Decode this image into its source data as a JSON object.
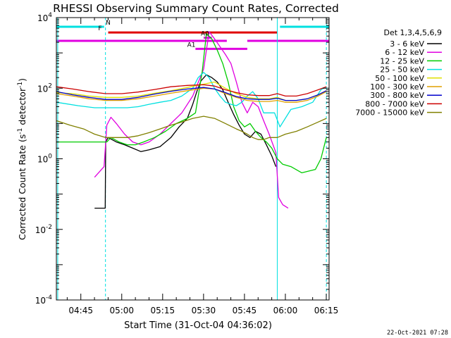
{
  "chart_data": {
    "type": "line",
    "title": "RHESSI Observing Summary Count Rates, Corrected",
    "xlabel": "Start Time (31-Oct-04 04:36:02)",
    "ylabel_main": "Corrected Count Rate (s",
    "ylabel_sup1": "-1",
    "ylabel_mid": " detector",
    "ylabel_sup2": "-1",
    "ylabel_end": ")",
    "x_unit": "minutes after 04:36:02",
    "xlim": [
      0,
      100
    ],
    "ylim": [
      0.0001,
      10000
    ],
    "yscale": "log",
    "x_ticks": [
      {
        "t": 8.97,
        "label": "04:45"
      },
      {
        "t": 23.97,
        "label": "05:00"
      },
      {
        "t": 38.97,
        "label": "05:15"
      },
      {
        "t": 53.97,
        "label": "05:30"
      },
      {
        "t": 68.97,
        "label": "05:45"
      },
      {
        "t": 83.97,
        "label": "06:00"
      },
      {
        "t": 98.97,
        "label": "06:15"
      }
    ],
    "y_ticks": [
      {
        "v": 10000,
        "base": "10",
        "exp": "4"
      },
      {
        "v": 100,
        "base": "10",
        "exp": "2"
      },
      {
        "v": 1,
        "base": "10",
        "exp": "0"
      },
      {
        "v": 0.01,
        "base": "10",
        "exp": "-2"
      },
      {
        "v": 0.0001,
        "base": "10",
        "exp": "-4"
      }
    ],
    "legend_title": "Det 1,3,4,5,6,9",
    "legend_placement": "right",
    "date_stamp": "22-Oct-2021 07:28",
    "vlines": [
      {
        "t": 0.5,
        "style": "solid",
        "color": "#00e0e0"
      },
      {
        "t": 18.0,
        "style": "dashed",
        "color": "#00e0e0"
      },
      {
        "t": 81.0,
        "style": "solid",
        "color": "#00e0e0"
      },
      {
        "t": 99.0,
        "style": "dashed",
        "color": "#00e0e0"
      }
    ],
    "status_bars": [
      {
        "label": "N",
        "color": "#00e0e0",
        "y": 5500,
        "segments": [
          [
            0,
            17.5
          ],
          [
            82,
            100
          ]
        ],
        "label_t": 19.0
      },
      {
        "label": "F",
        "color": "#e00000",
        "y": 3800,
        "segments": [
          [
            19,
            81
          ]
        ],
        "label_t": 16.0
      },
      {
        "label": "",
        "color": "#e000e0",
        "y": 2200,
        "segments": [
          [
            0,
            62.5
          ],
          [
            70,
            100
          ]
        ],
        "label_t": null
      },
      {
        "label": "A1",
        "color": "#e000e0",
        "y": 1300,
        "segments": [
          [
            51,
            70
          ]
        ],
        "label_t": 49.5
      },
      {
        "label": "A0",
        "color": "#e000e0",
        "y": 2700,
        "segments": [
          [
            54,
            57
          ]
        ],
        "label_t": 54.5
      }
    ],
    "series": [
      {
        "name": "3 - 6 keV",
        "color": "#000000",
        "x": [
          14,
          17.9,
          18.1,
          19,
          22,
          25,
          28,
          31,
          34,
          38,
          42,
          45,
          48,
          50,
          51.5,
          53,
          55,
          57,
          59,
          61,
          63,
          65,
          67,
          69,
          71,
          73,
          75,
          77,
          79,
          80.5
        ],
        "y": [
          0.04,
          0.04,
          3,
          4,
          3,
          2.5,
          2,
          1.6,
          1.8,
          2.2,
          4,
          8,
          14,
          35,
          80,
          160,
          240,
          200,
          150,
          90,
          40,
          18,
          9,
          5,
          4,
          6,
          5,
          2.5,
          1.2,
          0.6
        ]
      },
      {
        "name": "6 - 12 keV",
        "color": "#e000e0",
        "x": [
          14,
          17.5,
          18.5,
          20,
          22,
          25,
          28,
          31,
          34,
          38,
          42,
          46,
          50,
          54,
          56,
          58,
          60,
          62,
          64,
          66,
          68,
          70,
          72,
          74,
          76,
          78,
          80.5,
          81.5,
          83,
          85
        ],
        "y": [
          0.3,
          0.6,
          9,
          15,
          10,
          5,
          3,
          2.5,
          3,
          5,
          10,
          20,
          60,
          350,
          4000,
          2500,
          1500,
          900,
          500,
          150,
          40,
          20,
          40,
          30,
          12,
          5,
          1.5,
          0.08,
          0.05,
          0.04
        ]
      },
      {
        "name": "12 - 25 keV",
        "color": "#00cc00",
        "x": [
          0,
          10,
          16,
          18.5,
          20,
          23,
          26,
          29,
          32,
          36,
          40,
          44,
          48,
          51,
          53.5,
          55,
          57,
          59,
          61,
          63,
          65,
          67,
          69,
          71,
          73,
          75,
          77,
          79,
          81,
          83,
          86,
          90,
          95,
          97,
          99
        ],
        "y": [
          3,
          3,
          3,
          3,
          4,
          3,
          2.5,
          2.5,
          3,
          4,
          6,
          10,
          14,
          20,
          300,
          3500,
          2500,
          1200,
          500,
          150,
          30,
          12,
          8,
          10,
          6,
          4,
          3,
          2,
          1,
          0.7,
          0.6,
          0.4,
          0.5,
          1,
          4
        ]
      },
      {
        "name": "25 - 50 keV",
        "color": "#00e0e0",
        "x": [
          0,
          8,
          14,
          18,
          22,
          26,
          30,
          34,
          38,
          42,
          46,
          50,
          52,
          54,
          56,
          58,
          60,
          62,
          64,
          66,
          68,
          70,
          72,
          74,
          76,
          78,
          80,
          82,
          86,
          90,
          94,
          97,
          99
        ],
        "y": [
          40,
          32,
          28,
          28,
          28,
          28,
          30,
          35,
          40,
          45,
          60,
          100,
          200,
          280,
          200,
          100,
          60,
          40,
          35,
          32,
          40,
          60,
          80,
          50,
          20,
          20,
          20,
          8,
          25,
          30,
          40,
          90,
          110
        ]
      },
      {
        "name": "50 - 100 keV",
        "color": "#e0e000",
        "x": [
          0,
          6,
          12,
          18,
          24,
          30,
          36,
          42,
          48,
          54,
          58,
          62,
          66,
          70,
          74,
          78,
          81,
          84,
          88,
          92,
          96,
          99
        ],
        "y": [
          75,
          70,
          60,
          55,
          55,
          60,
          72,
          85,
          105,
          130,
          150,
          100,
          70,
          55,
          50,
          50,
          55,
          45,
          45,
          50,
          65,
          85
        ]
      },
      {
        "name": "100 - 300 keV",
        "color": "#e0a000",
        "x": [
          0,
          6,
          12,
          18,
          24,
          30,
          36,
          42,
          48,
          54,
          58,
          62,
          66,
          70,
          74,
          78,
          81,
          84,
          88,
          92,
          96,
          99
        ],
        "y": [
          70,
          60,
          50,
          45,
          45,
          50,
          60,
          72,
          85,
          100,
          95,
          70,
          55,
          45,
          42,
          42,
          45,
          40,
          40,
          45,
          60,
          80
        ]
      },
      {
        "name": "300 - 800 keV",
        "color": "#0000cc",
        "x": [
          0,
          6,
          12,
          18,
          24,
          30,
          36,
          42,
          48,
          54,
          58,
          62,
          66,
          70,
          74,
          78,
          81,
          84,
          88,
          92,
          96,
          99
        ],
        "y": [
          80,
          65,
          55,
          48,
          48,
          55,
          68,
          82,
          95,
          105,
          95,
          75,
          58,
          50,
          48,
          48,
          52,
          45,
          45,
          50,
          65,
          85
        ]
      },
      {
        "name": "800 - 7000 keV",
        "color": "#cc0000",
        "x": [
          0,
          6,
          12,
          18,
          24,
          30,
          36,
          42,
          48,
          54,
          58,
          62,
          66,
          70,
          74,
          78,
          81,
          84,
          88,
          92,
          96,
          99
        ],
        "y": [
          110,
          95,
          80,
          70,
          70,
          78,
          92,
          110,
          120,
          125,
          115,
          90,
          75,
          65,
          62,
          62,
          70,
          60,
          60,
          70,
          90,
          110
        ]
      },
      {
        "name": "7000 - 15000 keV",
        "color": "#808000",
        "x": [
          0,
          5,
          10,
          14,
          18,
          22,
          26,
          30,
          34,
          38,
          42,
          46,
          50,
          54,
          58,
          62,
          66,
          68,
          70,
          72,
          74,
          76,
          78,
          81,
          84,
          88,
          92,
          96,
          99
        ],
        "y": [
          12,
          9,
          7,
          5,
          4,
          4,
          4,
          4.5,
          5.5,
          7,
          9,
          11,
          14,
          16,
          14,
          10,
          7,
          6,
          5,
          4,
          3.5,
          3.5,
          4,
          4,
          5,
          6,
          8,
          11,
          14
        ]
      }
    ]
  }
}
